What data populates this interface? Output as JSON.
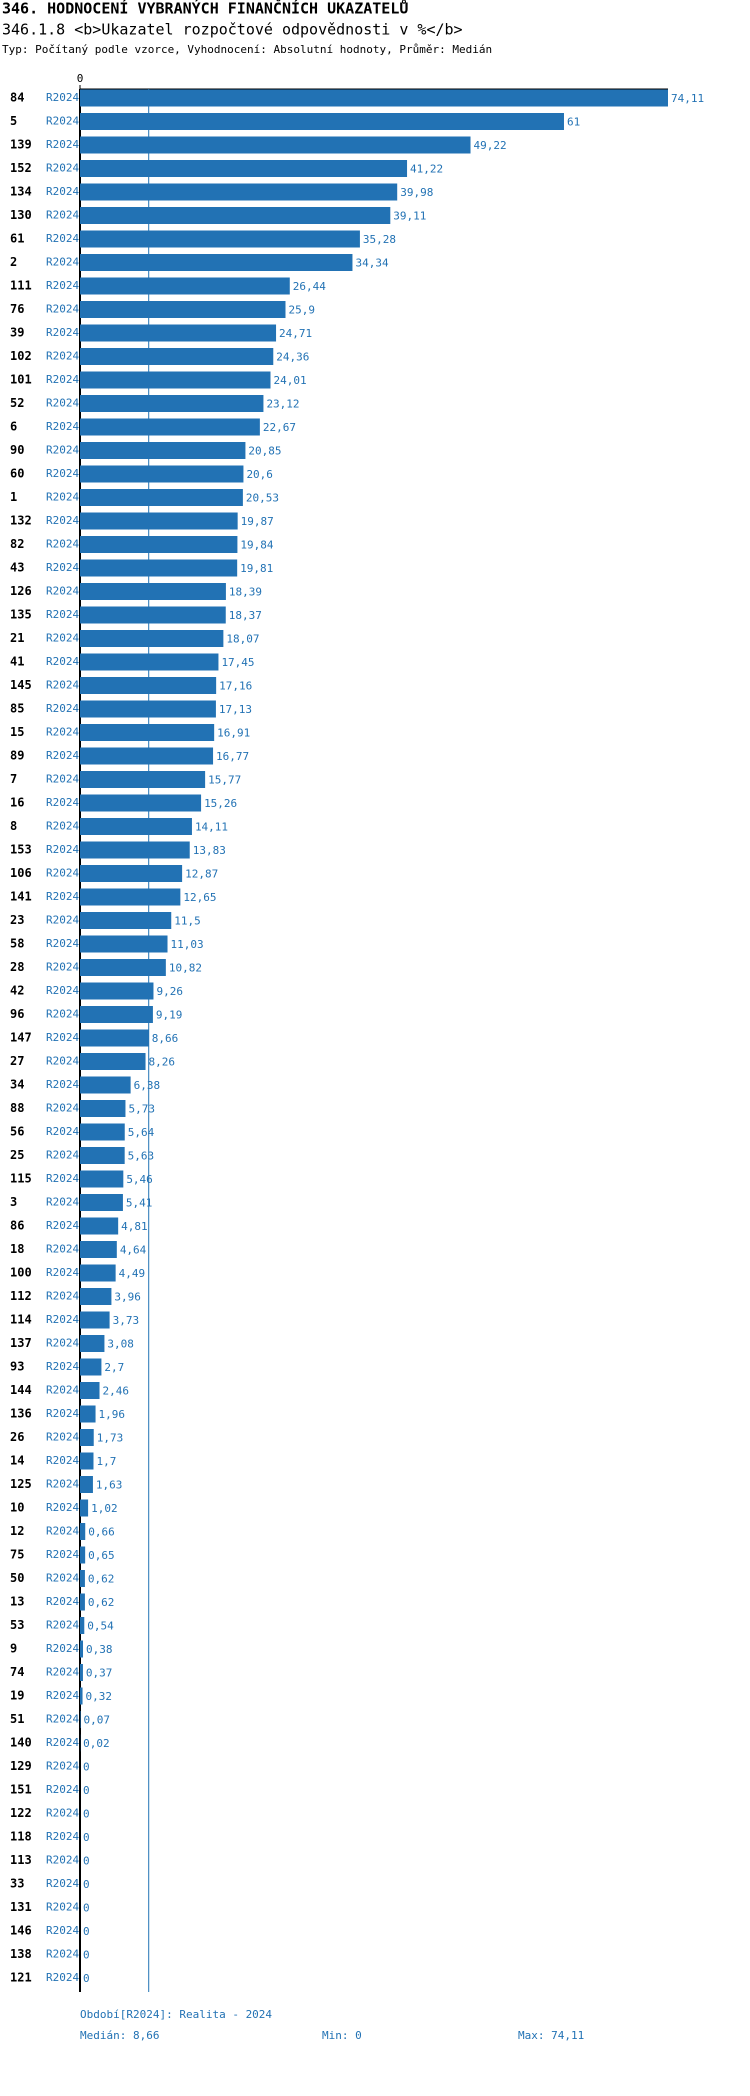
{
  "chart_data": {
    "type": "bar",
    "orientation": "horizontal",
    "title": "346. HODNOCENÍ VYBRANÝCH FINANČNÍCH UKAZATELŮ",
    "subtitle": "346.1.8 <b>Ukazatel rozpočtové odpovědnosti v %</b>",
    "description": "Typ: Počítaný podle vzorce, Vyhodnocení: Absolutní hodnoty, Průměr: Medián",
    "categories": [
      "84",
      "5",
      "139",
      "152",
      "134",
      "130",
      "61",
      "2",
      "111",
      "76",
      "39",
      "102",
      "101",
      "52",
      "6",
      "90",
      "60",
      "1",
      "132",
      "82",
      "43",
      "126",
      "135",
      "21",
      "41",
      "145",
      "85",
      "15",
      "89",
      "7",
      "16",
      "8",
      "153",
      "106",
      "141",
      "23",
      "58",
      "28",
      "42",
      "96",
      "147",
      "27",
      "34",
      "88",
      "56",
      "25",
      "115",
      "3",
      "86",
      "18",
      "100",
      "112",
      "114",
      "137",
      "93",
      "144",
      "136",
      "26",
      "14",
      "125",
      "10",
      "12",
      "75",
      "50",
      "13",
      "53",
      "9",
      "74",
      "19",
      "51",
      "140",
      "129",
      "151",
      "122",
      "118",
      "113",
      "33",
      "131",
      "146",
      "138",
      "121"
    ],
    "series": [
      {
        "name": "R2024",
        "color": "#2272b4",
        "values": [
          74.11,
          61,
          49.22,
          41.22,
          39.98,
          39.11,
          35.28,
          34.34,
          26.44,
          25.9,
          24.71,
          24.36,
          24.01,
          23.12,
          22.67,
          20.85,
          20.6,
          20.53,
          19.87,
          19.84,
          19.81,
          18.39,
          18.37,
          18.07,
          17.45,
          17.16,
          17.13,
          16.91,
          16.77,
          15.77,
          15.26,
          14.11,
          13.83,
          12.87,
          12.65,
          11.5,
          11.03,
          10.82,
          9.26,
          9.19,
          8.66,
          8.26,
          6.38,
          5.73,
          5.64,
          5.63,
          5.46,
          5.41,
          4.81,
          4.64,
          4.49,
          3.96,
          3.73,
          3.08,
          2.7,
          2.46,
          1.96,
          1.73,
          1.7,
          1.63,
          1.02,
          0.66,
          0.65,
          0.62,
          0.62,
          0.54,
          0.38,
          0.37,
          0.32,
          0.07,
          0.02,
          0,
          0,
          0,
          0,
          0,
          0,
          0,
          0,
          0,
          0
        ],
        "value_labels": [
          "74,11",
          "61",
          "49,22",
          "41,22",
          "39,98",
          "39,11",
          "35,28",
          "34,34",
          "26,44",
          "25,9",
          "24,71",
          "24,36",
          "24,01",
          "23,12",
          "22,67",
          "20,85",
          "20,6",
          "20,53",
          "19,87",
          "19,84",
          "19,81",
          "18,39",
          "18,37",
          "18,07",
          "17,45",
          "17,16",
          "17,13",
          "16,91",
          "16,77",
          "15,77",
          "15,26",
          "14,11",
          "13,83",
          "12,87",
          "12,65",
          "11,5",
          "11,03",
          "10,82",
          "9,26",
          "9,19",
          "8,66",
          "8,26",
          "6,38",
          "5,73",
          "5,64",
          "5,63",
          "5,46",
          "5,41",
          "4,81",
          "4,64",
          "4,49",
          "3,96",
          "3,73",
          "3,08",
          "2,7",
          "2,46",
          "1,96",
          "1,73",
          "1,7",
          "1,63",
          "1,02",
          "0,66",
          "0,65",
          "0,62",
          "0,62",
          "0,54",
          "0,38",
          "0,37",
          "0,32",
          "0,07",
          "0,02",
          "0",
          "0",
          "0",
          "0",
          "0",
          "0",
          "0",
          "0",
          "0",
          "0"
        ]
      }
    ],
    "xlim": [
      0,
      74.11
    ],
    "xticks": [
      0
    ],
    "median": 8.66,
    "median_color": "#2272b4",
    "footer": {
      "period": "Období[R2024]: Realita - 2024",
      "median": "Medián: 8,66",
      "min": "Min: 0",
      "max": "Max: 74,11"
    }
  }
}
